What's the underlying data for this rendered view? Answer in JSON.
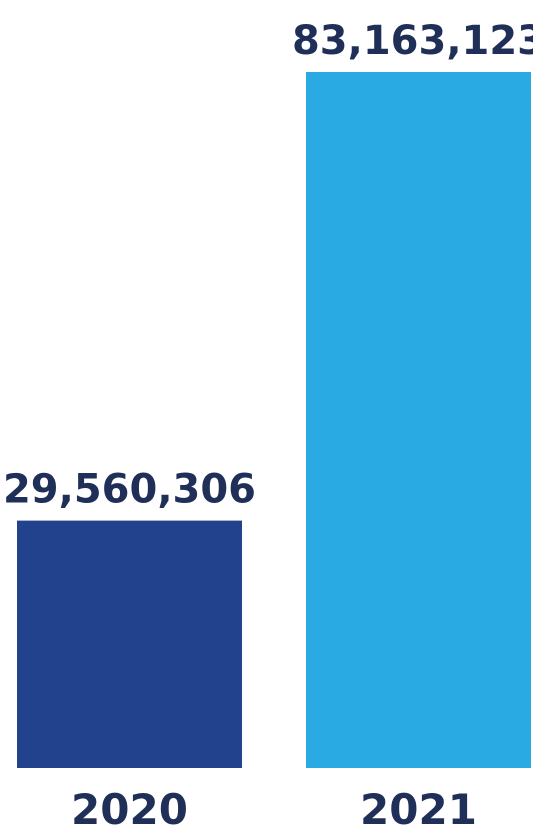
{
  "chart_data": {
    "type": "bar",
    "categories": [
      "2020",
      "2021"
    ],
    "values": [
      29560306,
      83163123
    ],
    "data_labels": [
      "29,560,306",
      "83,163,123"
    ],
    "colors": [
      "#22428e",
      "#29aae2"
    ],
    "text_color": "#1f2f57",
    "title": "",
    "xlabel": "",
    "ylabel": "",
    "ylim": [
      0,
      83163123
    ],
    "grid": false,
    "legend": "none"
  }
}
